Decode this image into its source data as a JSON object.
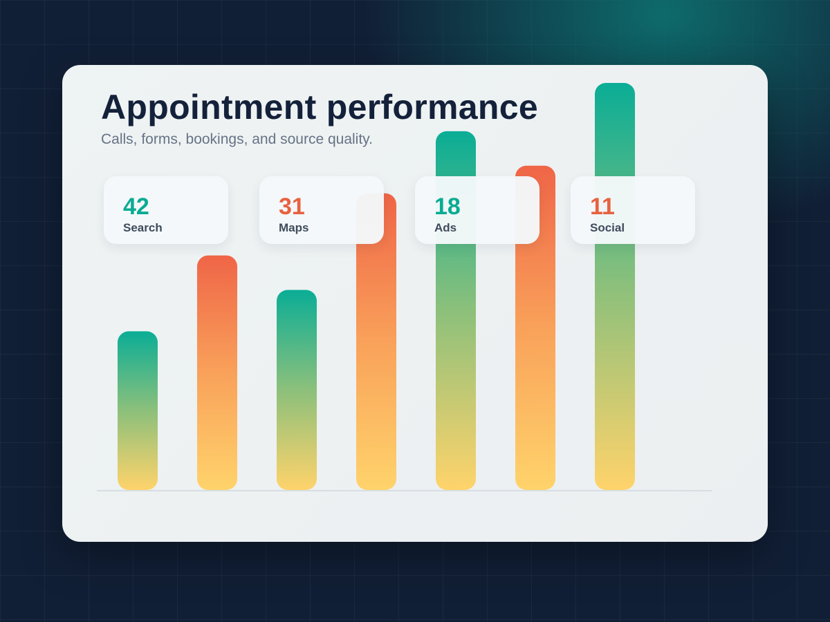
{
  "page": {
    "title": "Appointment performance",
    "subtitle": "Calls, forms, bookings, and source quality."
  },
  "colors": {
    "teal": "#0aad96",
    "coral": "#ef6547",
    "gold": "#ffd36b",
    "navy": "#14213a",
    "background": "#111f36"
  },
  "stats": [
    {
      "value": "42",
      "label": "Search",
      "color": "#0aab93"
    },
    {
      "value": "31",
      "label": "Maps",
      "color": "#e8613f"
    },
    {
      "value": "18",
      "label": "Ads",
      "color": "#0aab93"
    },
    {
      "value": "11",
      "label": "Social",
      "color": "#e8613f"
    }
  ],
  "chart_data": {
    "type": "bar",
    "title": "",
    "xlabel": "",
    "ylabel": "",
    "categories": [
      "",
      "",
      "",
      "",
      "",
      "",
      ""
    ],
    "values": [
      230,
      340,
      290,
      430,
      520,
      470,
      590
    ],
    "ylim": [
      0,
      590
    ],
    "grid": false,
    "bar_gradients": [
      "teal",
      "coral",
      "teal",
      "coral",
      "teal",
      "coral",
      "teal"
    ]
  }
}
